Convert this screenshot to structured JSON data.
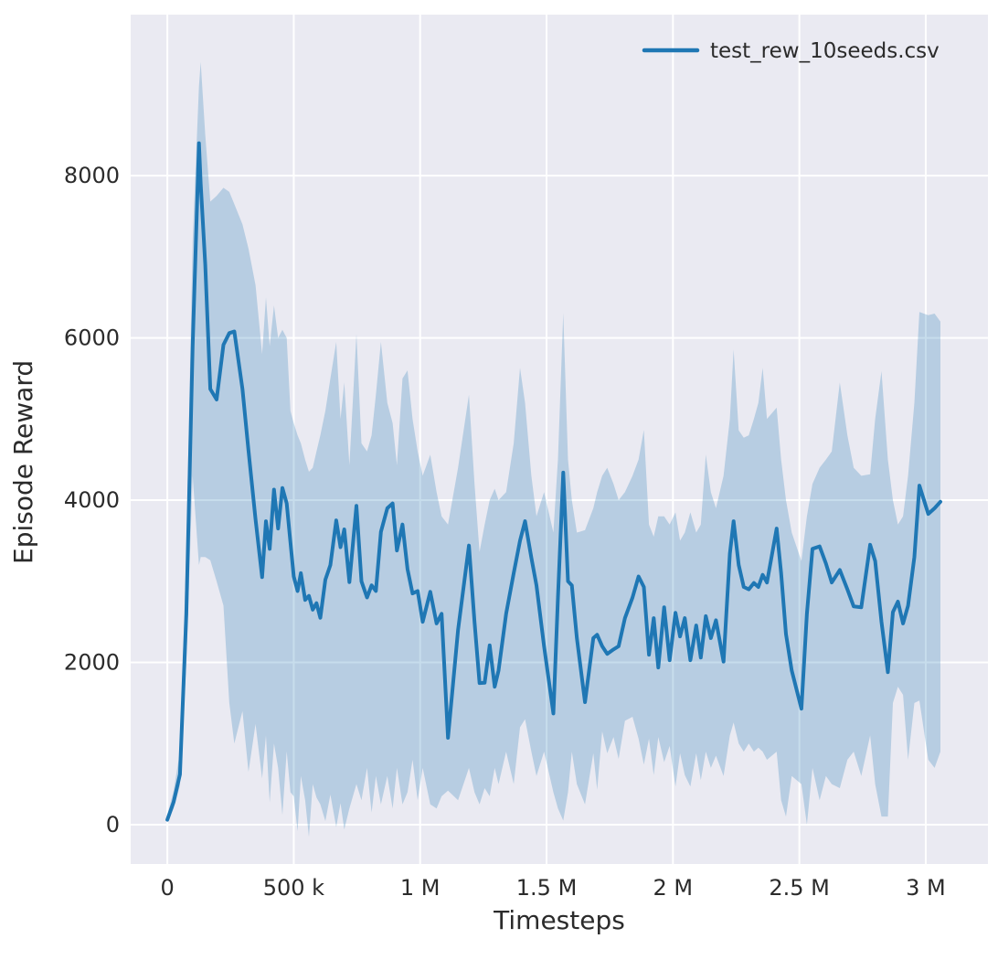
{
  "figure": {
    "background": "#ffffff"
  },
  "chart_data": {
    "type": "line",
    "title": "",
    "xlabel": "Timesteps",
    "ylabel": "Episode Reward",
    "legend": {
      "position": "upper right",
      "frame": false,
      "entries": [
        "test_rew_10seeds.csv"
      ]
    },
    "style": {
      "plot_bg": "#eaeaf2",
      "grid_color": "#ffffff",
      "line_color": "#1f77b4",
      "band_color": "#1f77b4",
      "band_opacity": 0.25,
      "text_color": "#2b2b2b",
      "line_width": 4
    },
    "grid": true,
    "x_ticks_k": [
      0,
      500,
      1000,
      1500,
      2000,
      2500,
      3000
    ],
    "x_tick_labels": [
      "0",
      "500 k",
      "1 M",
      "1.5 M",
      "2 M",
      "2.5 M",
      "3 M"
    ],
    "y_ticks": [
      0,
      2000,
      4000,
      6000,
      8000
    ],
    "y_tick_labels": [
      "0",
      "2000",
      "4000",
      "6000",
      "8000"
    ],
    "xlim_k": [
      -145,
      3246
    ],
    "ylim": [
      -485,
      9985
    ],
    "series": [
      {
        "name": "test_rew_10seeds.csv",
        "x_unit": "thousand timesteps",
        "x_k": [
          0,
          25,
          50,
          75,
          100,
          125,
          132,
          150,
          170,
          195,
          222,
          245,
          265,
          297,
          321,
          349,
          375,
          390,
          405,
          422,
          438,
          455,
          472,
          487,
          500,
          515,
          528,
          545,
          560,
          575,
          590,
          605,
          625,
          645,
          668,
          685,
          700,
          720,
          748,
          768,
          790,
          808,
          825,
          845,
          870,
          891,
          908,
          930,
          950,
          970,
          990,
          1010,
          1040,
          1065,
          1085,
          1110,
          1150,
          1193,
          1215,
          1235,
          1255,
          1275,
          1295,
          1310,
          1340,
          1370,
          1395,
          1415,
          1440,
          1460,
          1490,
          1527,
          1545,
          1566,
          1585,
          1600,
          1620,
          1652,
          1685,
          1700,
          1720,
          1740,
          1765,
          1785,
          1810,
          1840,
          1864,
          1885,
          1905,
          1924,
          1942,
          1965,
          1987,
          2010,
          2028,
          2047,
          2069,
          2092,
          2110,
          2130,
          2150,
          2170,
          2200,
          2225,
          2240,
          2260,
          2280,
          2300,
          2320,
          2338,
          2355,
          2372,
          2410,
          2428,
          2447,
          2470,
          2508,
          2530,
          2552,
          2580,
          2605,
          2628,
          2660,
          2690,
          2715,
          2745,
          2780,
          2800,
          2825,
          2850,
          2870,
          2890,
          2910,
          2930,
          2955,
          2975,
          3010,
          3035,
          3058
        ],
        "mean": [
          60,
          280,
          620,
          2600,
          5900,
          8400,
          7900,
          6900,
          5370,
          5240,
          5915,
          6060,
          6080,
          5370,
          4610,
          3765,
          3050,
          3740,
          3400,
          4130,
          3650,
          4150,
          3960,
          3480,
          3060,
          2880,
          3100,
          2770,
          2820,
          2650,
          2730,
          2550,
          3020,
          3200,
          3750,
          3420,
          3640,
          2990,
          3930,
          3000,
          2800,
          2950,
          2880,
          3610,
          3900,
          3960,
          3380,
          3700,
          3150,
          2850,
          2880,
          2500,
          2870,
          2480,
          2600,
          1070,
          2400,
          3440,
          2500,
          1745,
          1750,
          2210,
          1700,
          1900,
          2600,
          3100,
          3500,
          3740,
          3290,
          2950,
          2200,
          1370,
          2800,
          4340,
          3000,
          2950,
          2300,
          1510,
          2300,
          2340,
          2200,
          2105,
          2160,
          2200,
          2545,
          2800,
          3060,
          2930,
          2095,
          2545,
          1937,
          2680,
          2027,
          2612,
          2320,
          2545,
          2027,
          2455,
          2060,
          2570,
          2300,
          2520,
          2010,
          3340,
          3740,
          3200,
          2930,
          2900,
          2980,
          2930,
          3080,
          2985,
          3650,
          3100,
          2350,
          1900,
          1430,
          2600,
          3400,
          3430,
          3220,
          2985,
          3140,
          2900,
          2690,
          2680,
          3450,
          3250,
          2500,
          1880,
          2620,
          2750,
          2480,
          2700,
          3300,
          4180,
          3830,
          3900,
          3980
        ],
        "band_lower": [
          30,
          200,
          480,
          2000,
          4300,
          3200,
          3300,
          3300,
          3260,
          3000,
          2700,
          1500,
          1000,
          1400,
          650,
          1240,
          570,
          1100,
          275,
          1000,
          700,
          120,
          905,
          400,
          350,
          -80,
          600,
          300,
          -150,
          500,
          335,
          250,
          45,
          370,
          -30,
          265,
          -60,
          200,
          500,
          300,
          700,
          150,
          600,
          250,
          600,
          200,
          700,
          250,
          400,
          800,
          300,
          700,
          250,
          200,
          350,
          420,
          300,
          700,
          400,
          250,
          450,
          350,
          700,
          500,
          900,
          500,
          1200,
          1300,
          900,
          600,
          900,
          400,
          200,
          50,
          400,
          900,
          500,
          250,
          880,
          430,
          1150,
          880,
          1080,
          810,
          1280,
          1330,
          1060,
          740,
          1060,
          610,
          1080,
          770,
          970,
          470,
          880,
          610,
          470,
          880,
          550,
          900,
          700,
          850,
          600,
          1100,
          1260,
          1000,
          900,
          1000,
          900,
          950,
          900,
          800,
          900,
          300,
          100,
          600,
          500,
          0,
          700,
          300,
          600,
          500,
          450,
          800,
          900,
          600,
          1100,
          500,
          100,
          100,
          1500,
          1700,
          1600,
          800,
          1500,
          1530,
          800,
          700,
          900
        ],
        "band_upper": [
          120,
          420,
          900,
          3400,
          7200,
          9100,
          9400,
          8500,
          7680,
          7750,
          7850,
          7800,
          7650,
          7400,
          7100,
          6650,
          5800,
          6500,
          5900,
          6400,
          6000,
          6100,
          6000,
          5100,
          4950,
          4800,
          4700,
          4500,
          4350,
          4400,
          4600,
          4800,
          5100,
          5500,
          5950,
          5000,
          5450,
          4430,
          6050,
          4700,
          4600,
          4800,
          5300,
          5950,
          5200,
          4950,
          4430,
          5500,
          5600,
          5000,
          4600,
          4300,
          4560,
          4100,
          3800,
          3700,
          4400,
          5300,
          4200,
          3360,
          3700,
          4000,
          4140,
          4000,
          4100,
          4700,
          5630,
          5200,
          4300,
          3800,
          4100,
          3600,
          4500,
          6306,
          4500,
          4000,
          3600,
          3630,
          3900,
          4100,
          4300,
          4400,
          4200,
          4000,
          4100,
          4300,
          4500,
          4865,
          3700,
          3550,
          3800,
          3800,
          3700,
          3850,
          3500,
          3600,
          3850,
          3600,
          3700,
          4560,
          4100,
          3900,
          4300,
          5000,
          5856,
          4860,
          4770,
          4800,
          5000,
          5200,
          5630,
          5000,
          5140,
          4500,
          4000,
          3600,
          3250,
          3800,
          4200,
          4400,
          4500,
          4600,
          5450,
          4800,
          4400,
          4300,
          4320,
          5000,
          5590,
          4500,
          4000,
          3700,
          3800,
          4300,
          5200,
          6320,
          6280,
          6300,
          6200
        ]
      }
    ]
  }
}
